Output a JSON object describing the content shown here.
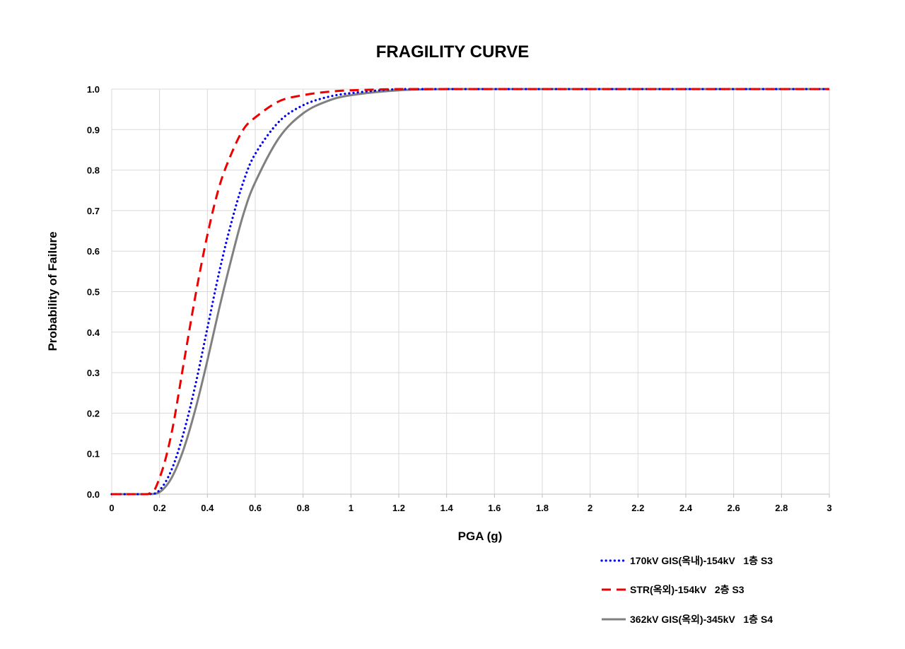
{
  "chart_data": {
    "type": "line",
    "title": "FRAGILITY CURVE",
    "xlabel": "PGA (g)",
    "ylabel": "Probability of Failure",
    "xlim": [
      0,
      3
    ],
    "ylim": [
      0,
      1
    ],
    "x_ticks": [
      "0",
      "0.2",
      "0.4",
      "0.6",
      "0.8",
      "1",
      "1.2",
      "1.4",
      "1.6",
      "1.8",
      "2",
      "2.2",
      "2.4",
      "2.6",
      "2.8",
      "3"
    ],
    "y_ticks": [
      "0.0",
      "0.1",
      "0.2",
      "0.3",
      "0.4",
      "0.5",
      "0.6",
      "0.7",
      "0.8",
      "0.9",
      "1.0"
    ],
    "grid": true,
    "legend_position": "bottom-right",
    "series": [
      {
        "name": "170kV GIS(옥내)-154kV   1층 S3",
        "color": "#0000ee",
        "style": "dotted",
        "x": [
          0,
          0.15,
          0.2,
          0.25,
          0.3,
          0.35,
          0.4,
          0.45,
          0.5,
          0.55,
          0.6,
          0.7,
          0.8,
          0.9,
          1.0,
          1.2,
          1.4,
          1.6,
          2.0,
          3.0
        ],
        "y": [
          0,
          0.0,
          0.01,
          0.06,
          0.15,
          0.27,
          0.41,
          0.55,
          0.67,
          0.77,
          0.84,
          0.92,
          0.96,
          0.98,
          0.99,
          1.0,
          1.0,
          1.0,
          1.0,
          1.0
        ]
      },
      {
        "name": "STR(옥외)-154kV   2층 S3",
        "color": "#ee0000",
        "style": "dashed",
        "x": [
          0,
          0.15,
          0.2,
          0.25,
          0.3,
          0.35,
          0.4,
          0.45,
          0.5,
          0.55,
          0.6,
          0.7,
          0.8,
          0.9,
          1.0,
          1.2,
          1.4,
          1.6,
          2.0,
          3.0
        ],
        "y": [
          0,
          0.0,
          0.04,
          0.15,
          0.32,
          0.49,
          0.64,
          0.76,
          0.84,
          0.9,
          0.93,
          0.97,
          0.985,
          0.993,
          0.997,
          1.0,
          1.0,
          1.0,
          1.0,
          1.0
        ]
      },
      {
        "name": "362kV GIS(옥외)-345kV   1층 S4",
        "color": "#808080",
        "style": "solid",
        "x": [
          0,
          0.15,
          0.2,
          0.25,
          0.3,
          0.35,
          0.4,
          0.45,
          0.5,
          0.55,
          0.6,
          0.7,
          0.8,
          0.9,
          1.0,
          1.2,
          1.4,
          1.6,
          2.0,
          3.0
        ],
        "y": [
          0,
          0.0,
          0.005,
          0.04,
          0.11,
          0.21,
          0.33,
          0.46,
          0.58,
          0.69,
          0.77,
          0.88,
          0.94,
          0.97,
          0.985,
          0.997,
          1.0,
          1.0,
          1.0,
          1.0
        ]
      }
    ]
  }
}
